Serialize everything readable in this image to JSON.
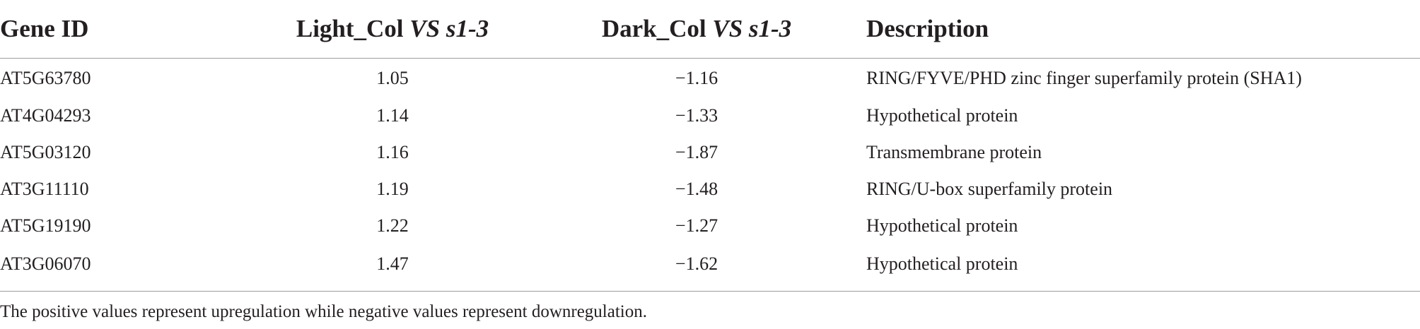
{
  "table": {
    "headers": {
      "gene_id": "Gene ID",
      "light": {
        "prefix": "Light_Col ",
        "italic": "VS s1-3"
      },
      "dark": {
        "prefix": "Dark_Col ",
        "italic": "VS s1-3"
      },
      "description": "Description"
    },
    "rows": [
      {
        "gene_id": "AT5G63780",
        "light": "1.05",
        "dark": "−1.16",
        "description": "RING/FYVE/PHD zinc finger superfamily protein (SHA1)"
      },
      {
        "gene_id": "AT4G04293",
        "light": "1.14",
        "dark": "−1.33",
        "description": "Hypothetical protein"
      },
      {
        "gene_id": "AT5G03120",
        "light": "1.16",
        "dark": "−1.87",
        "description": "Transmembrane protein"
      },
      {
        "gene_id": "AT3G11110",
        "light": "1.19",
        "dark": "−1.48",
        "description": "RING/U-box superfamily protein"
      },
      {
        "gene_id": "AT5G19190",
        "light": "1.22",
        "dark": "−1.27",
        "description": "Hypothetical protein"
      },
      {
        "gene_id": "AT3G06070",
        "light": "1.47",
        "dark": "−1.62",
        "description": "Hypothetical protein"
      }
    ],
    "footnote": "The positive values represent upregulation while negative values represent downregulation."
  }
}
